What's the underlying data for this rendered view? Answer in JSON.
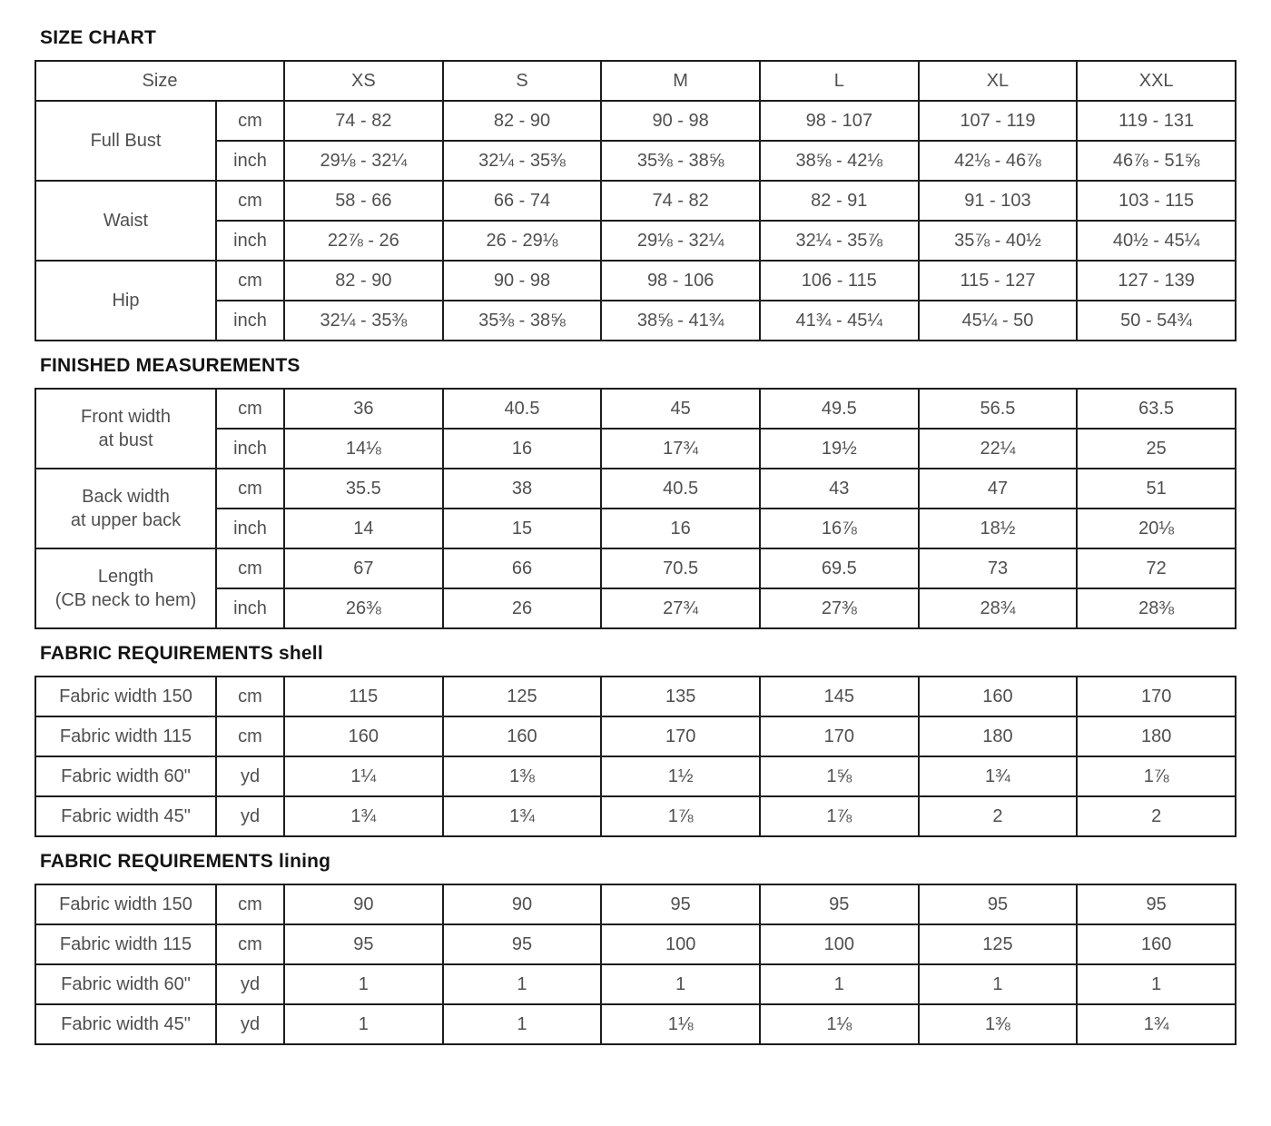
{
  "colors": {
    "table_border": "#1c1c1c",
    "table_text": "#4f4f4f",
    "heading_text": "#141414",
    "background": "#ffffff"
  },
  "sizes": [
    "XS",
    "S",
    "M",
    "L",
    "XL",
    "XXL"
  ],
  "size_chart": {
    "heading": "SIZE CHART",
    "size_label": "Size",
    "groups": [
      {
        "label_lines": [
          "Full Bust"
        ],
        "rows": [
          {
            "unit": "cm",
            "values": [
              "74 - 82",
              "82 - 90",
              "90 - 98",
              "98 - 107",
              "107 - 119",
              "119 - 131"
            ]
          },
          {
            "unit": "inch",
            "values": [
              "29⅛ - 32¼",
              "32¼ - 35⅜",
              "35⅜ - 38⅝",
              "38⅝ - 42⅛",
              "42⅛ - 46⅞",
              "46⅞ - 51⅝"
            ]
          }
        ]
      },
      {
        "label_lines": [
          "Waist"
        ],
        "rows": [
          {
            "unit": "cm",
            "values": [
              "58 - 66",
              "66 - 74",
              "74 - 82",
              "82 - 91",
              "91 - 103",
              "103 - 115"
            ]
          },
          {
            "unit": "inch",
            "values": [
              "22⅞ - 26",
              "26 - 29⅛",
              "29⅛ - 32¼",
              "32¼ - 35⅞",
              "35⅞ - 40½",
              "40½ - 45¼"
            ]
          }
        ]
      },
      {
        "label_lines": [
          "Hip"
        ],
        "rows": [
          {
            "unit": "cm",
            "values": [
              "82 - 90",
              "90 - 98",
              "98 - 106",
              "106 - 115",
              "115 - 127",
              "127 - 139"
            ]
          },
          {
            "unit": "inch",
            "values": [
              "32¼ - 35⅜",
              "35⅜ - 38⅝",
              "38⅝ - 41¾",
              "41¾ - 45¼",
              "45¼ - 50",
              "50 - 54¾"
            ]
          }
        ]
      }
    ]
  },
  "finished_measurements": {
    "heading": "FINISHED MEASUREMENTS",
    "groups": [
      {
        "label_lines": [
          "Front width",
          "at bust"
        ],
        "rows": [
          {
            "unit": "cm",
            "values": [
              "36",
              "40.5",
              "45",
              "49.5",
              "56.5",
              "63.5"
            ]
          },
          {
            "unit": "inch",
            "values": [
              "14⅛",
              "16",
              "17¾",
              "19½",
              "22¼",
              "25"
            ]
          }
        ]
      },
      {
        "label_lines": [
          "Back width",
          "at upper back"
        ],
        "rows": [
          {
            "unit": "cm",
            "values": [
              "35.5",
              "38",
              "40.5",
              "43",
              "47",
              "51"
            ]
          },
          {
            "unit": "inch",
            "values": [
              "14",
              "15",
              "16",
              "16⅞",
              "18½",
              "20⅛"
            ]
          }
        ]
      },
      {
        "label_lines": [
          "Length",
          "(CB neck to hem)"
        ],
        "rows": [
          {
            "unit": "cm",
            "values": [
              "67",
              "66",
              "70.5",
              "69.5",
              "73",
              "72"
            ]
          },
          {
            "unit": "inch",
            "values": [
              "26⅜",
              "26",
              "27¾",
              "27⅜",
              "28¾",
              "28⅜"
            ]
          }
        ]
      }
    ]
  },
  "fabric_shell": {
    "heading": "FABRIC REQUIREMENTS shell",
    "rows": [
      {
        "label": "Fabric width 150",
        "unit": "cm",
        "values": [
          "115",
          "125",
          "135",
          "145",
          "160",
          "170"
        ]
      },
      {
        "label": "Fabric width 115",
        "unit": "cm",
        "values": [
          "160",
          "160",
          "170",
          "170",
          "180",
          "180"
        ]
      },
      {
        "label": "Fabric width 60\"",
        "unit": "yd",
        "values": [
          "1¼",
          "1⅜",
          "1½",
          "1⅝",
          "1¾",
          "1⅞"
        ]
      },
      {
        "label": "Fabric width 45\"",
        "unit": "yd",
        "values": [
          "1¾",
          "1¾",
          "1⅞",
          "1⅞",
          "2",
          "2"
        ]
      }
    ]
  },
  "fabric_lining": {
    "heading": "FABRIC REQUIREMENTS lining",
    "rows": [
      {
        "label": "Fabric width 150",
        "unit": "cm",
        "values": [
          "90",
          "90",
          "95",
          "95",
          "95",
          "95"
        ]
      },
      {
        "label": "Fabric width 115",
        "unit": "cm",
        "values": [
          "95",
          "95",
          "100",
          "100",
          "125",
          "160"
        ]
      },
      {
        "label": "Fabric width 60\"",
        "unit": "yd",
        "values": [
          "1",
          "1",
          "1",
          "1",
          "1",
          "1"
        ]
      },
      {
        "label": "Fabric width 45\"",
        "unit": "yd",
        "values": [
          "1",
          "1",
          "1⅛",
          "1⅛",
          "1⅜",
          "1¾"
        ]
      }
    ]
  }
}
